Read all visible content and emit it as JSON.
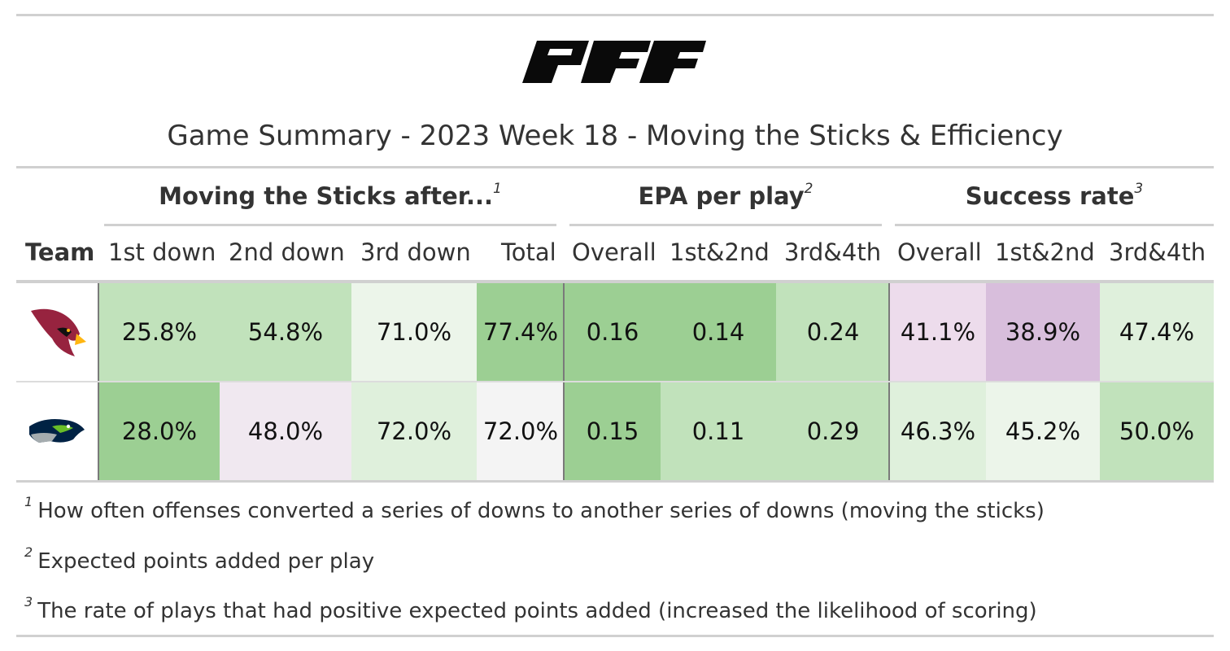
{
  "brand": "PFF",
  "chart_data": {
    "type": "table",
    "title": "Game Summary - 2023 Week 18 - Moving the Sticks & Efficiency",
    "spanners": [
      {
        "label": "Moving the Sticks after...",
        "mark": "1"
      },
      {
        "label": "EPA per play",
        "mark": "2"
      },
      {
        "label": "Success rate",
        "mark": "3"
      }
    ],
    "columns": [
      "Team",
      "1st down",
      "2nd down",
      "3rd down",
      "Total",
      "Overall",
      "1st&2nd",
      "3rd&4th",
      "Overall",
      "1st&2nd",
      "3rd&4th"
    ],
    "rows": [
      {
        "team_logo": "arizona-cardinals-logo-icon",
        "cells": [
          {
            "text": "25.8%",
            "color": "#c1e2bb"
          },
          {
            "text": "54.8%",
            "color": "#c1e2bb"
          },
          {
            "text": "71.0%",
            "color": "#ecf5ea"
          },
          {
            "text": "77.4%",
            "color": "#9ccf93"
          },
          {
            "text": "0.16",
            "color": "#9ccf93"
          },
          {
            "text": "0.14",
            "color": "#9ccf93"
          },
          {
            "text": "0.24",
            "color": "#c1e2bb"
          },
          {
            "text": "41.1%",
            "color": "#eddcec"
          },
          {
            "text": "38.9%",
            "color": "#d8bedc"
          },
          {
            "text": "47.4%",
            "color": "#dff0dc"
          }
        ]
      },
      {
        "team_logo": "seattle-seahawks-logo-icon",
        "cells": [
          {
            "text": "28.0%",
            "color": "#9ccf93"
          },
          {
            "text": "48.0%",
            "color": "#f0e8f0"
          },
          {
            "text": "72.0%",
            "color": "#dff0dc"
          },
          {
            "text": "72.0%",
            "color": "#f4f4f4"
          },
          {
            "text": "0.15",
            "color": "#9ccf93"
          },
          {
            "text": "0.11",
            "color": "#c1e2bb"
          },
          {
            "text": "0.29",
            "color": "#c1e2bb"
          },
          {
            "text": "46.3%",
            "color": "#dff0dc"
          },
          {
            "text": "45.2%",
            "color": "#ecf5ea"
          },
          {
            "text": "50.0%",
            "color": "#c1e2bb"
          }
        ]
      }
    ],
    "footnotes": [
      {
        "mark": "1",
        "text": "How often offenses converted a series of downs to another series of downs (moving the sticks)"
      },
      {
        "mark": "2",
        "text": "Expected points added per play"
      },
      {
        "mark": "3",
        "text": "The rate of plays that had positive expected points added (increased the likelihood of scoring)"
      }
    ]
  }
}
